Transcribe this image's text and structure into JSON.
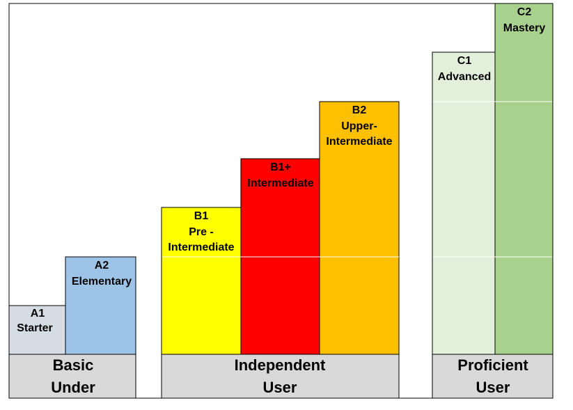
{
  "levels": [
    {
      "code": "A1",
      "lines": [
        "Starter"
      ]
    },
    {
      "code": "A2",
      "lines": [
        "Elementary"
      ]
    },
    {
      "code": "B1",
      "lines": [
        "Pre -",
        "Intermediate"
      ]
    },
    {
      "code": "B1+",
      "lines": [
        "Intermediate"
      ]
    },
    {
      "code": "B2",
      "lines": [
        "Upper-",
        "Intermediate"
      ]
    },
    {
      "code": "C1",
      "lines": [
        "Advanced"
      ]
    },
    {
      "code": "C2",
      "lines": [
        "Mastery"
      ]
    }
  ],
  "groups": [
    {
      "lines": [
        "Basic",
        "Under"
      ]
    },
    {
      "lines": [
        "Independent",
        "User"
      ]
    },
    {
      "lines": [
        "Proficient",
        "User"
      ]
    }
  ]
}
